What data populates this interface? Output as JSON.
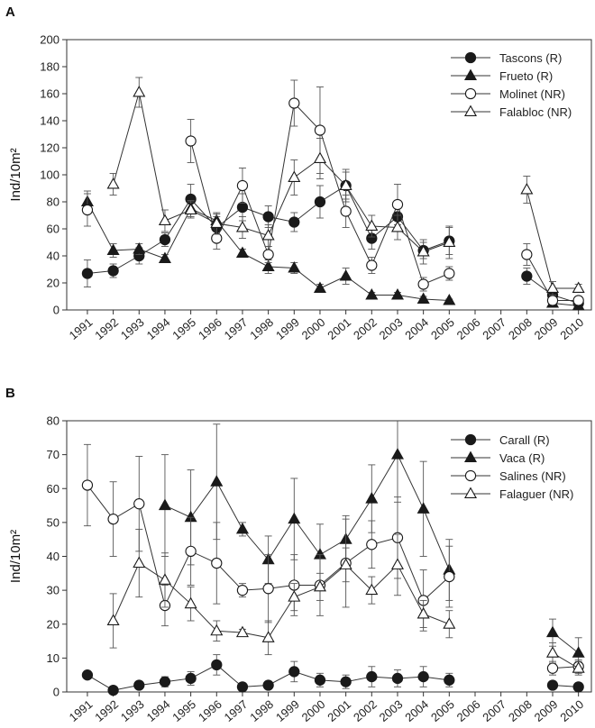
{
  "chart_data": [
    {
      "panel": "A",
      "type": "line",
      "ylabel": "Ind/10m²",
      "ylim": [
        0,
        200
      ],
      "yticks": [
        0,
        20,
        40,
        60,
        80,
        100,
        120,
        140,
        160,
        180,
        200
      ],
      "categories": [
        "1991",
        "1992",
        "1993",
        "1994",
        "1995",
        "1996",
        "1997",
        "1998",
        "1999",
        "2000",
        "2001",
        "2002",
        "2003",
        "2004",
        "2005",
        "2006",
        "2007",
        "2008",
        "2009",
        "2010"
      ],
      "legend_position": "top-right",
      "series": [
        {
          "name": "Tascons (R)",
          "marker": "circle",
          "filled": true,
          "values": [
            27,
            29,
            40,
            52,
            82,
            61,
            76,
            69,
            65,
            80,
            92,
            53,
            69,
            44,
            51,
            null,
            null,
            25,
            11,
            5
          ],
          "errors": [
            10,
            5,
            6,
            5,
            11,
            8,
            10,
            8,
            7,
            12,
            10,
            8,
            8,
            6,
            10,
            null,
            null,
            6,
            4,
            3
          ]
        },
        {
          "name": "Frueto (R)",
          "marker": "triangle",
          "filled": true,
          "values": [
            80,
            44,
            45,
            38,
            75,
            66,
            42,
            32,
            31,
            16,
            25,
            11,
            11,
            8,
            7,
            null,
            null,
            null,
            5,
            3
          ],
          "errors": [
            8,
            5,
            4,
            3,
            6,
            5,
            3,
            5,
            4,
            3,
            6,
            2,
            2,
            2,
            1,
            null,
            null,
            null,
            3,
            2
          ]
        },
        {
          "name": "Molinet (NR)",
          "marker": "circle",
          "filled": false,
          "values": [
            74,
            null,
            null,
            null,
            125,
            53,
            92,
            41,
            153,
            133,
            73,
            33,
            78,
            19,
            27,
            null,
            null,
            41,
            7,
            7
          ],
          "errors": [
            12,
            null,
            null,
            null,
            16,
            8,
            13,
            6,
            17,
            32,
            12,
            6,
            15,
            5,
            5,
            null,
            null,
            8,
            3,
            3
          ]
        },
        {
          "name": "Falabloc (NR)",
          "marker": "triangle",
          "filled": false,
          "values": [
            null,
            93,
            161,
            66,
            74,
            64,
            61,
            55,
            98,
            112,
            92,
            62,
            61,
            43,
            50,
            null,
            null,
            89,
            16,
            16
          ],
          "errors": [
            null,
            8,
            11,
            8,
            6,
            8,
            8,
            8,
            13,
            15,
            12,
            8,
            9,
            9,
            12,
            null,
            null,
            10,
            5,
            3
          ]
        }
      ]
    },
    {
      "panel": "B",
      "type": "line",
      "ylabel": "Ind/10m²",
      "ylim": [
        0,
        80
      ],
      "yticks": [
        0,
        10,
        20,
        30,
        40,
        50,
        60,
        70,
        80
      ],
      "categories": [
        "1991",
        "1992",
        "1993",
        "1994",
        "1995",
        "1996",
        "1997",
        "1998",
        "1999",
        "2000",
        "2001",
        "2002",
        "2003",
        "2004",
        "2005",
        "2006",
        "2007",
        "2008",
        "2009",
        "2010"
      ],
      "legend_position": "top-right",
      "series": [
        {
          "name": "Carall (R)",
          "marker": "circle",
          "filled": true,
          "values": [
            5,
            0.5,
            2,
            3,
            4,
            8,
            1.5,
            2,
            6,
            3.5,
            3,
            4.5,
            4,
            4.5,
            3.5,
            null,
            null,
            null,
            2,
            1.5
          ],
          "errors": [
            1,
            0.5,
            1,
            1.5,
            2,
            3,
            1,
            1,
            3,
            2,
            2,
            3,
            2.5,
            3,
            2,
            null,
            null,
            null,
            1,
            1
          ]
        },
        {
          "name": "Vaca (R)",
          "marker": "triangle",
          "filled": true,
          "values": [
            null,
            null,
            null,
            55,
            51.5,
            62,
            48,
            39,
            51,
            40.5,
            45,
            57,
            70,
            54,
            36,
            null,
            null,
            null,
            17.5,
            11.5
          ],
          "errors": [
            null,
            null,
            null,
            15,
            14,
            17,
            2,
            7,
            12,
            9,
            7,
            10,
            14,
            14,
            9,
            null,
            null,
            null,
            4,
            4.5
          ]
        },
        {
          "name": "Salines (NR)",
          "marker": "circle",
          "filled": false,
          "values": [
            61,
            51,
            55.5,
            25.5,
            41.5,
            38,
            30,
            30.5,
            31.5,
            31.5,
            38,
            43.5,
            45.5,
            27,
            34,
            null,
            null,
            null,
            7,
            7.5
          ],
          "errors": [
            12,
            11,
            14,
            6,
            10,
            12,
            2,
            10,
            9,
            9,
            13,
            7,
            12,
            9,
            9,
            null,
            null,
            null,
            2,
            2
          ]
        },
        {
          "name": "Falaguer (NR)",
          "marker": "triangle",
          "filled": false,
          "values": [
            null,
            21,
            38,
            33,
            26,
            18,
            17.5,
            16,
            28,
            31,
            37.5,
            30,
            37.5,
            23,
            20,
            null,
            null,
            null,
            11.5,
            7
          ],
          "errors": [
            null,
            8,
            10,
            8,
            5,
            3,
            1,
            5,
            4,
            4,
            5,
            4,
            9,
            4,
            4,
            null,
            null,
            null,
            3,
            2
          ]
        }
      ]
    }
  ]
}
